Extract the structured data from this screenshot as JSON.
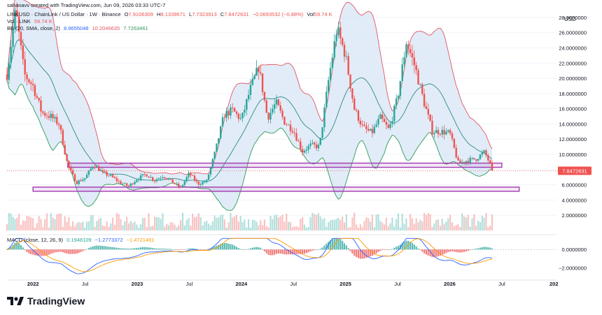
{
  "header": {
    "credit": "sahanavv created with TradingView.com, Jun 09, 2026 03:33 UTC-7"
  },
  "legend": {
    "symbol": "LINKUSD · ChainLink / US Dollar · 1W · Binance",
    "open_label": "O",
    "open": "7.9106309",
    "high_label": "H",
    "high": "8.1339671",
    "low_label": "L",
    "low": "7.7323913",
    "close_label": "C",
    "close": "7.8472631",
    "change": "−0.0693532 (−0.88%)",
    "vol_label": "Vol",
    "vol": "59.74 K",
    "vol_row_label": "Vol · LINK",
    "vol_row_value": "59.74 K",
    "bb_label": "BB (20, SMA, close, 2)",
    "bb_basis": "8.9655048",
    "bb_upper": "10.2046635",
    "bb_lower": "7.7263461",
    "macd_label": "MACD (close, 12, 26, 9)",
    "macd_hist": "0.1948109",
    "macd_line": "−1.2773372",
    "macd_signal": "−1.4721481"
  },
  "footer": {
    "brand": "TradingView"
  },
  "colors": {
    "up": "#26a69a",
    "down": "#ef5350",
    "bb_upper": "#e25562",
    "bb_basis": "#2d8a84",
    "bb_lower": "#2d9a55",
    "bb_fill": "#d7e6f5",
    "box": "#a23ab2",
    "macd": "#2962ff",
    "signal": "#ff9800",
    "price_tag": "#ef5350"
  },
  "chart_data": {
    "type": "candlestick",
    "title": "LINKUSD · ChainLink / US Dollar · 1W · Binance",
    "currency_label": "USD",
    "x_ticks": [
      "2022",
      "Jul",
      "2023",
      "Jul",
      "2024",
      "Jul",
      "2025",
      "Jul",
      "2026",
      "Jul",
      "202"
    ],
    "y_ticks": [
      "28.0000000",
      "26.0000000",
      "24.0000000",
      "22.0000000",
      "20.0000000",
      "18.0000000",
      "16.0000000",
      "14.0000000",
      "12.0000000",
      "10.0000000",
      "6.0000000",
      "4.0000000",
      "2.0000000"
    ],
    "ylim": [
      0,
      29
    ],
    "last_price": "7.8472631",
    "last_price_value": 7.8472631,
    "macd_y_ticks": [
      "0.0000000",
      "−2.0000000"
    ],
    "macd_ylim": [
      -3,
      1.3
    ],
    "anchors": [
      [
        "2021-10",
        20.5
      ],
      [
        "2021-11",
        29.0
      ],
      [
        "2021-12",
        20.5
      ],
      [
        "2022-01",
        19.0
      ],
      [
        "2022-02",
        15.5
      ],
      [
        "2022-03",
        15.0
      ],
      [
        "2022-04",
        14.0
      ],
      [
        "2022-05",
        8.5
      ],
      [
        "2022-06",
        6.3
      ],
      [
        "2022-07",
        6.9
      ],
      [
        "2022-08",
        8.7
      ],
      [
        "2022-09",
        7.6
      ],
      [
        "2022-10",
        7.1
      ],
      [
        "2022-11",
        6.3
      ],
      [
        "2022-12",
        5.8
      ],
      [
        "2023-01",
        6.8
      ],
      [
        "2023-02",
        7.4
      ],
      [
        "2023-03",
        6.6
      ],
      [
        "2023-04",
        7.2
      ],
      [
        "2023-05",
        6.4
      ],
      [
        "2023-06",
        5.6
      ],
      [
        "2023-07",
        7.5
      ],
      [
        "2023-08",
        6.1
      ],
      [
        "2023-09",
        6.5
      ],
      [
        "2023-10",
        10.4
      ],
      [
        "2023-11",
        15.2
      ],
      [
        "2023-12",
        15.8
      ],
      [
        "2024-01",
        14.5
      ],
      [
        "2024-02",
        18.5
      ],
      [
        "2024-03",
        21.5
      ],
      [
        "2024-04",
        14.8
      ],
      [
        "2024-05",
        16.8
      ],
      [
        "2024-06",
        14.2
      ],
      [
        "2024-07",
        13.2
      ],
      [
        "2024-08",
        10.4
      ],
      [
        "2024-09",
        11.2
      ],
      [
        "2024-10",
        11.0
      ],
      [
        "2024-11",
        19.5
      ],
      [
        "2024-12",
        26.5
      ],
      [
        "2025-01",
        23.0
      ],
      [
        "2025-02",
        16.0
      ],
      [
        "2025-03",
        13.5
      ],
      [
        "2025-04",
        12.8
      ],
      [
        "2025-05",
        14.8
      ],
      [
        "2025-06",
        13.2
      ],
      [
        "2025-07",
        17.5
      ],
      [
        "2025-08",
        24.8
      ],
      [
        "2025-09",
        21.5
      ],
      [
        "2025-10",
        17.0
      ],
      [
        "2025-11",
        13.0
      ],
      [
        "2025-12",
        13.0
      ],
      [
        "2026-01",
        12.8
      ],
      [
        "2026-02",
        8.8
      ],
      [
        "2026-03",
        9.2
      ],
      [
        "2026-04",
        9.4
      ],
      [
        "2026-05",
        10.3
      ],
      [
        "2026-06",
        7.85
      ]
    ],
    "zones": [
      {
        "name": "resistance-support box",
        "from": "2022-05",
        "to": "2026-07",
        "y_low": 8.3,
        "y_high": 8.85
      },
      {
        "name": "lower support box",
        "from": "2022-01",
        "to": "2026-09",
        "y_low": 5.15,
        "y_high": 5.7
      }
    ]
  }
}
